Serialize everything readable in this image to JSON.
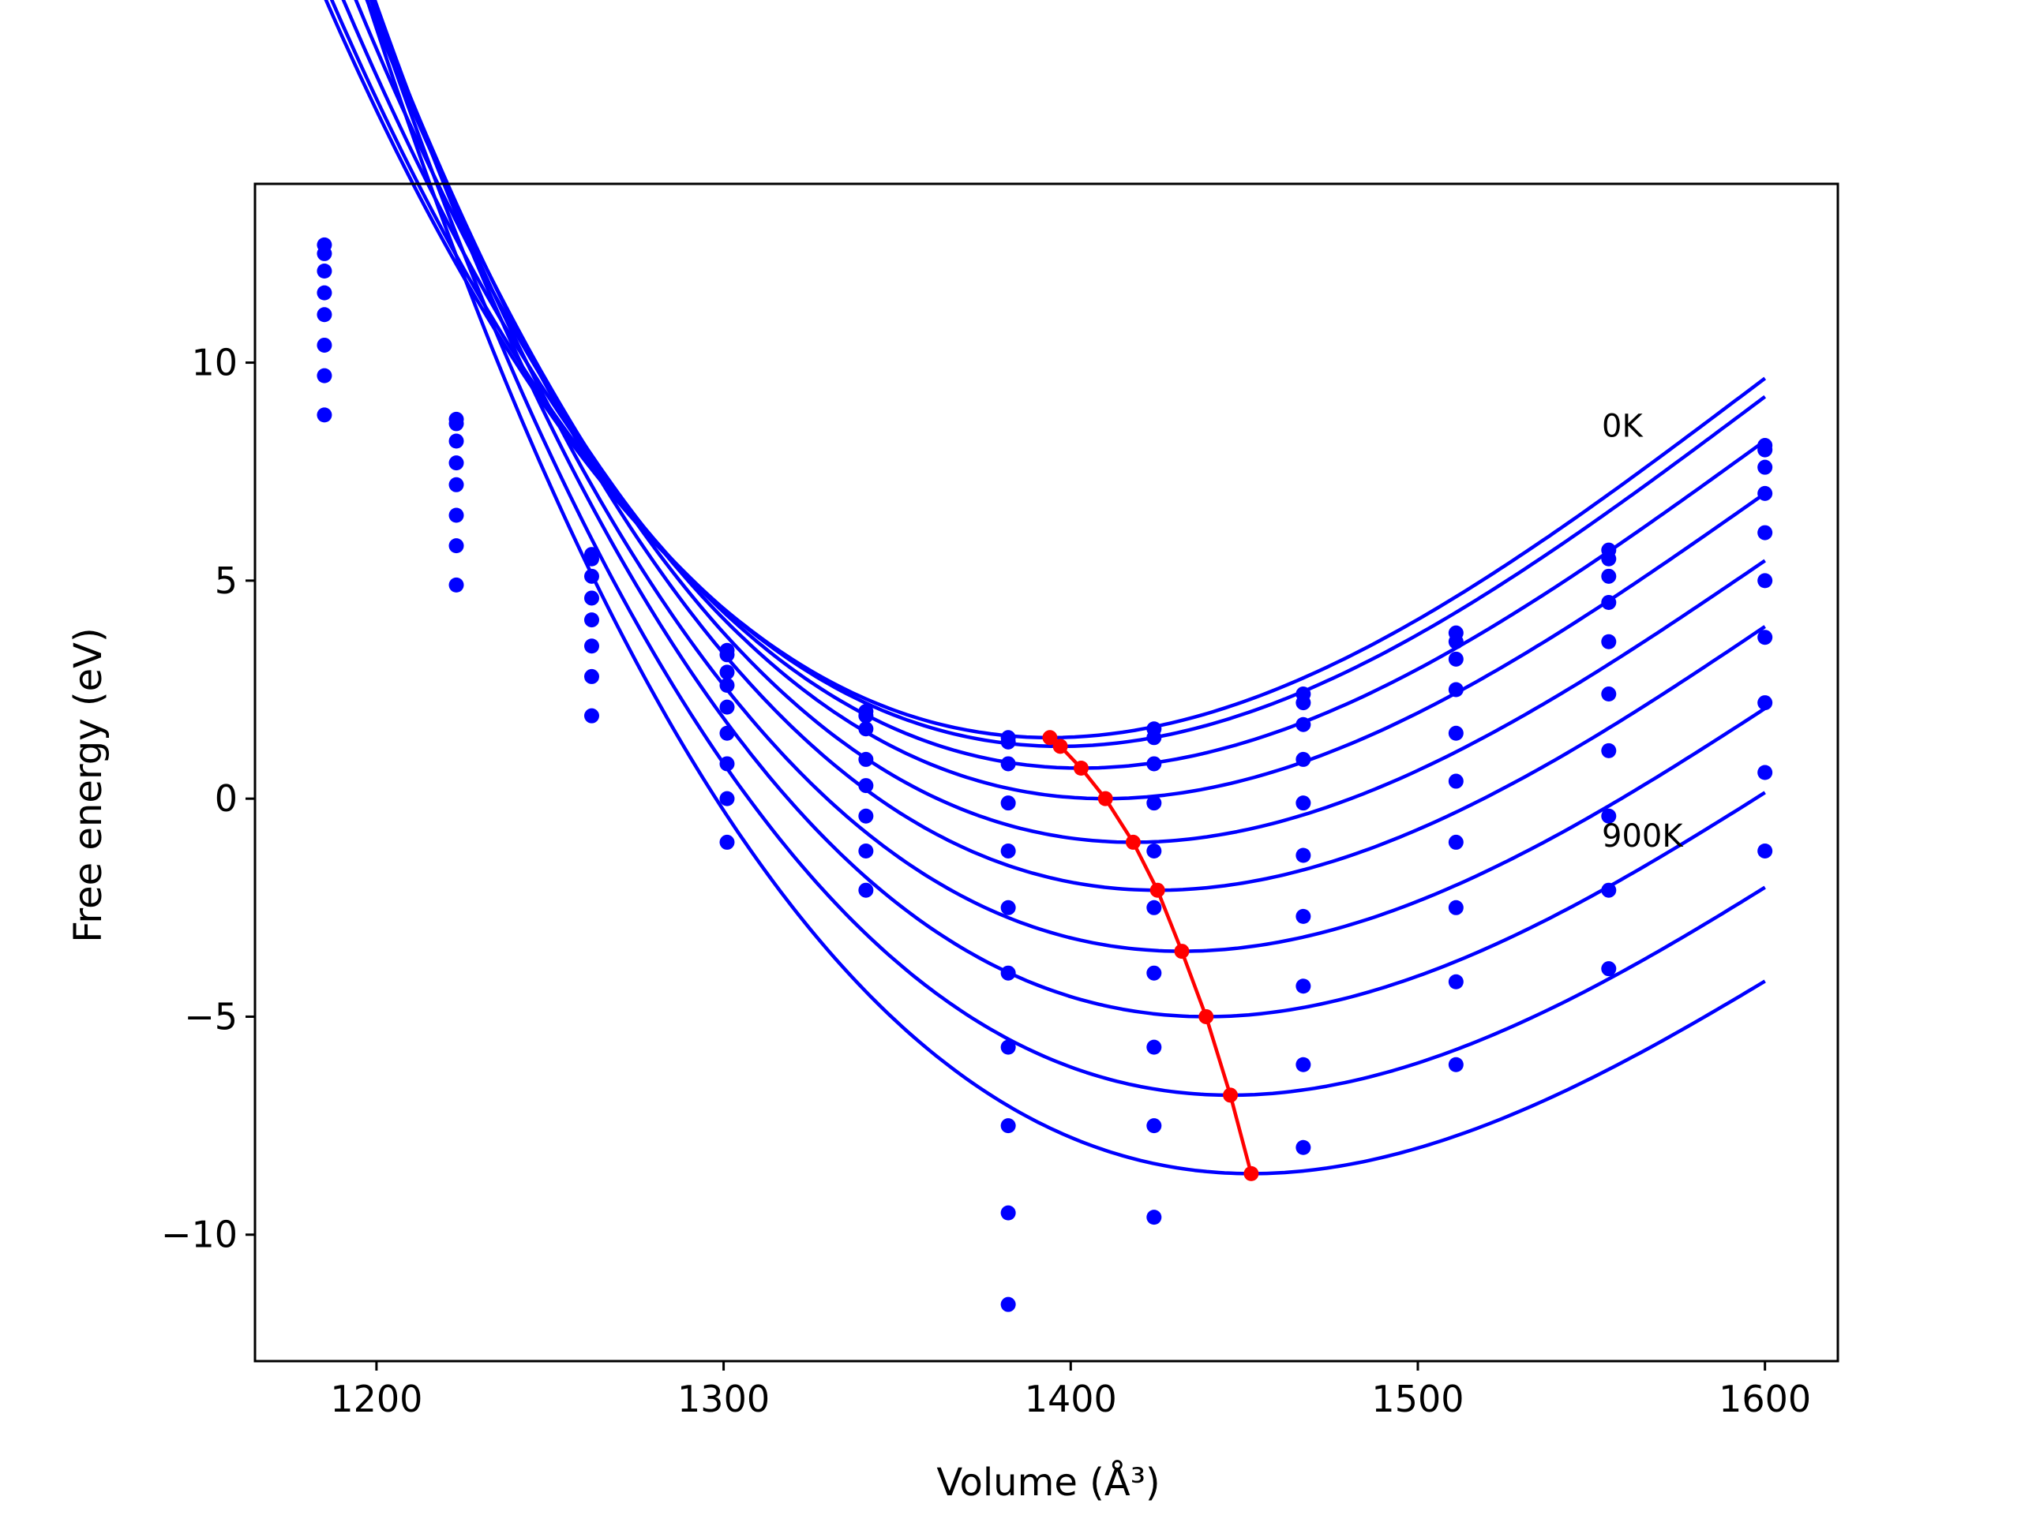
{
  "chart_data": {
    "type": "scatter",
    "title": "",
    "xlabel": "Volume (Å³)",
    "ylabel": "Free energy (eV)",
    "xlim": [
      1165,
      1621
    ],
    "ylim": [
      -12.9,
      14.1
    ],
    "xticks": [
      1200,
      1300,
      1400,
      1500,
      1600
    ],
    "xtick_labels": [
      "1200",
      "1300",
      "1400",
      "1500",
      "1600"
    ],
    "yticks": [
      -10,
      -5,
      0,
      5,
      10
    ],
    "ytick_labels": [
      "−10",
      "−5",
      "0",
      "5",
      "10"
    ],
    "grid": false,
    "annotations": [
      {
        "text": "0K",
        "x": 1553,
        "y": 8.3
      },
      {
        "text": "900K",
        "x": 1553,
        "y": -1.1
      }
    ],
    "colors": {
      "fits": "#0000ff",
      "points": "#0000ff",
      "minimum_curve": "#ff0000"
    },
    "volumes": [
      1185,
      1223,
      1262,
      1301,
      1341,
      1382,
      1424,
      1467,
      1511,
      1555,
      1600
    ],
    "series": [
      {
        "values": [
          12.7,
          8.7,
          5.6,
          3.4,
          2.0,
          1.4,
          1.6,
          2.4,
          3.8,
          5.7,
          8.1
        ]
      },
      {
        "values": [
          12.5,
          8.6,
          5.5,
          3.3,
          1.9,
          1.3,
          1.4,
          2.2,
          3.6,
          5.5,
          8.0
        ]
      },
      {
        "values": [
          12.1,
          8.2,
          5.1,
          2.9,
          1.6,
          0.8,
          0.8,
          1.7,
          3.2,
          5.1,
          7.6
        ]
      },
      {
        "values": [
          11.6,
          7.7,
          4.6,
          2.6,
          0.9,
          -0.1,
          -0.1,
          0.9,
          2.5,
          4.5,
          7.0
        ]
      },
      {
        "values": [
          11.1,
          7.2,
          4.1,
          2.1,
          0.3,
          -1.2,
          -1.2,
          -0.1,
          1.5,
          3.6,
          6.1
        ]
      },
      {
        "values": [
          10.4,
          6.5,
          3.5,
          1.5,
          -0.4,
          -2.5,
          -2.5,
          -1.3,
          0.4,
          2.4,
          5.0
        ]
      },
      {
        "values": [
          9.7,
          5.8,
          2.8,
          0.8,
          -1.2,
          -4.0,
          -4.0,
          -2.7,
          -1.0,
          1.1,
          3.7
        ]
      },
      {
        "values": [
          8.8,
          4.9,
          1.9,
          0.0,
          -2.1,
          -5.7,
          -5.7,
          -4.3,
          -2.5,
          -0.4,
          2.2
        ]
      },
      {
        "values": [
          null,
          null,
          null,
          -1.0,
          null,
          -7.5,
          -7.5,
          -6.1,
          -4.2,
          -2.1,
          0.6
        ]
      },
      {
        "values": [
          null,
          null,
          null,
          null,
          null,
          -9.5,
          -9.6,
          -8.0,
          -6.1,
          -3.9,
          -1.2
        ]
      },
      {
        "values": [
          null,
          null,
          null,
          null,
          null,
          -11.6,
          null,
          null,
          null,
          null,
          null
        ]
      }
    ],
    "fit_curves": [
      {
        "min_volume": 1394,
        "min_energy": 1.4,
        "curvature": 0.000291,
        "skew": -4.7e-07
      },
      {
        "min_volume": 1397,
        "min_energy": 1.2,
        "curvature": 0.00029,
        "skew": -4.7e-07
      },
      {
        "min_volume": 1403,
        "min_energy": 0.7,
        "curvature": 0.000288,
        "skew": -4.8e-07
      },
      {
        "min_volume": 1410,
        "min_energy": 0.0,
        "curvature": 0.000287,
        "skew": -4.9e-07
      },
      {
        "min_volume": 1418,
        "min_energy": -1.0,
        "curvature": 0.000286,
        "skew": -5e-07
      },
      {
        "min_volume": 1425,
        "min_energy": -2.1,
        "curvature": 0.000285,
        "skew": -5e-07
      },
      {
        "min_volume": 1432,
        "min_energy": -3.5,
        "curvature": 0.000283,
        "skew": -5.1e-07
      },
      {
        "min_volume": 1439,
        "min_energy": -5.0,
        "curvature": 0.000282,
        "skew": -5.2e-07
      },
      {
        "min_volume": 1446,
        "min_energy": -6.8,
        "curvature": 0.000281,
        "skew": -5.2e-07
      },
      {
        "min_volume": 1452,
        "min_energy": -8.6,
        "curvature": 0.00028,
        "skew": -5.3e-07
      }
    ],
    "minimum_curve": {
      "x": [
        1394,
        1397,
        1403,
        1410,
        1418,
        1425,
        1432,
        1439,
        1446,
        1452
      ],
      "y": [
        1.4,
        1.2,
        0.7,
        0.0,
        -1.0,
        -2.1,
        -3.5,
        -5.0,
        -6.8,
        -8.6
      ]
    }
  }
}
